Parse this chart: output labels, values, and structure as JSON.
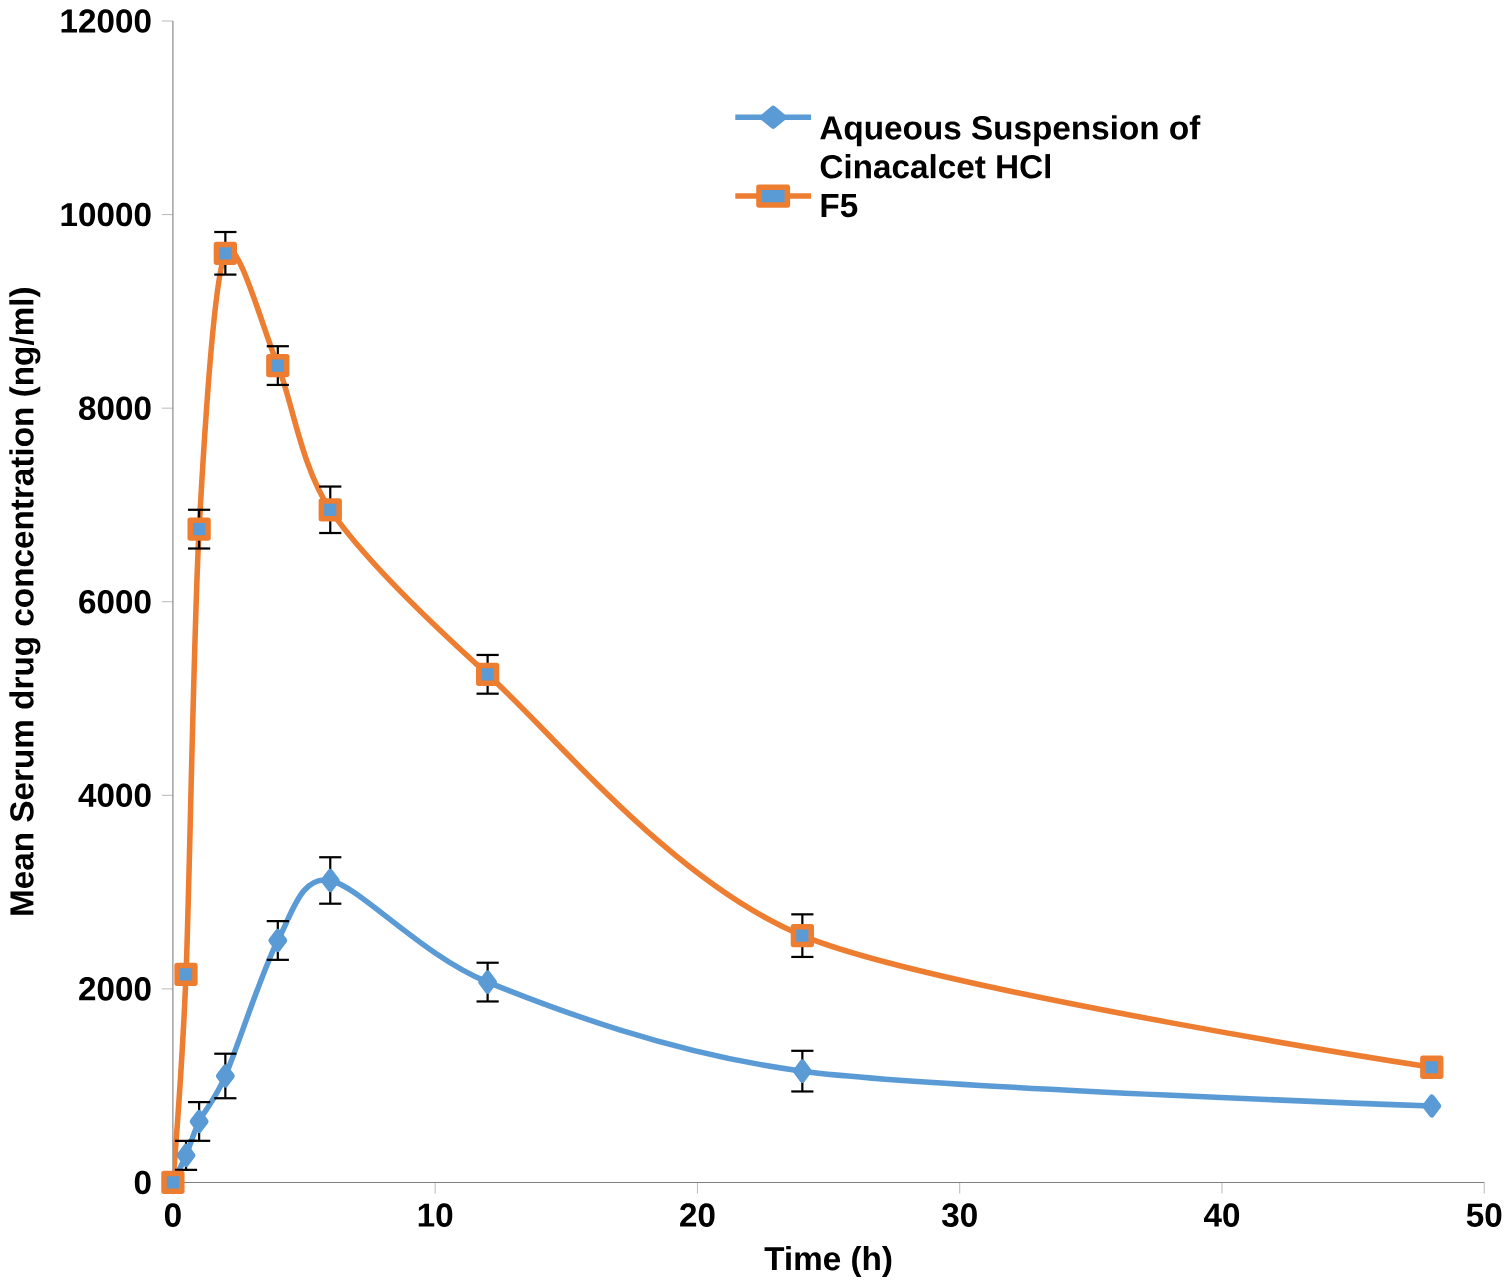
{
  "chart_data": {
    "type": "line",
    "xlabel": "Time (h)",
    "ylabel": "Mean Serum drug concentration (ng/ml)",
    "x": [
      0,
      0.5,
      1,
      2,
      4,
      6,
      12,
      24,
      48
    ],
    "series": [
      {
        "name": "Aqueous Suspension of Cinacalcet HCl",
        "color": "#5b9bd5",
        "marker": "diamond",
        "values": [
          0,
          280,
          630,
          1100,
          2500,
          3120,
          2070,
          1150,
          790
        ],
        "errors": [
          null,
          150,
          200,
          230,
          200,
          240,
          200,
          210,
          null
        ]
      },
      {
        "name": "F5",
        "color": "#ed7d31",
        "marker": "square",
        "values": [
          0,
          2150,
          6750,
          9600,
          8440,
          6950,
          5250,
          2550,
          1190
        ],
        "errors": [
          null,
          null,
          200,
          220,
          200,
          240,
          200,
          220,
          null
        ]
      }
    ],
    "xlim": [
      0,
      50
    ],
    "xticks": [
      0,
      10,
      20,
      30,
      40,
      50
    ],
    "ylim": [
      0,
      12000
    ],
    "yticks": [
      0,
      2000,
      4000,
      6000,
      8000,
      10000,
      12000
    ],
    "grid": false,
    "legend": "top right",
    "line_style": "solid"
  }
}
